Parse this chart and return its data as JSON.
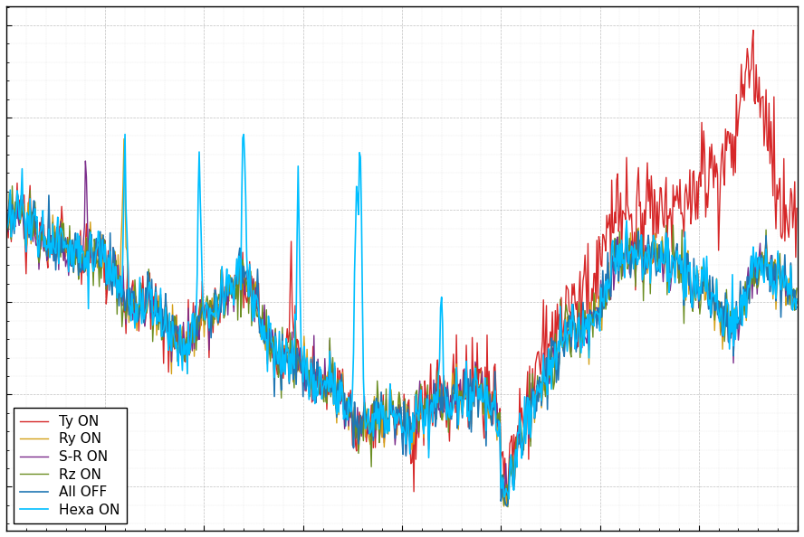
{
  "title": "",
  "xlabel": "",
  "ylabel": "",
  "n_points": 800,
  "colors": {
    "All OFF": "#1f77b4",
    "Ty ON": "#d62728",
    "Ry ON": "#d4a017",
    "S-R ON": "#7b2d8b",
    "Rz ON": "#6b8e23",
    "Hexa ON": "#00bfff"
  },
  "legend_labels": [
    "All OFF",
    "Ty ON",
    "Ry ON",
    "S-R ON",
    "Rz ON",
    "Hexa ON"
  ],
  "background_color": "#ffffff",
  "grid_color": "#cccccc",
  "ylim": [
    -250,
    50
  ],
  "xlim": [
    0,
    800
  ]
}
